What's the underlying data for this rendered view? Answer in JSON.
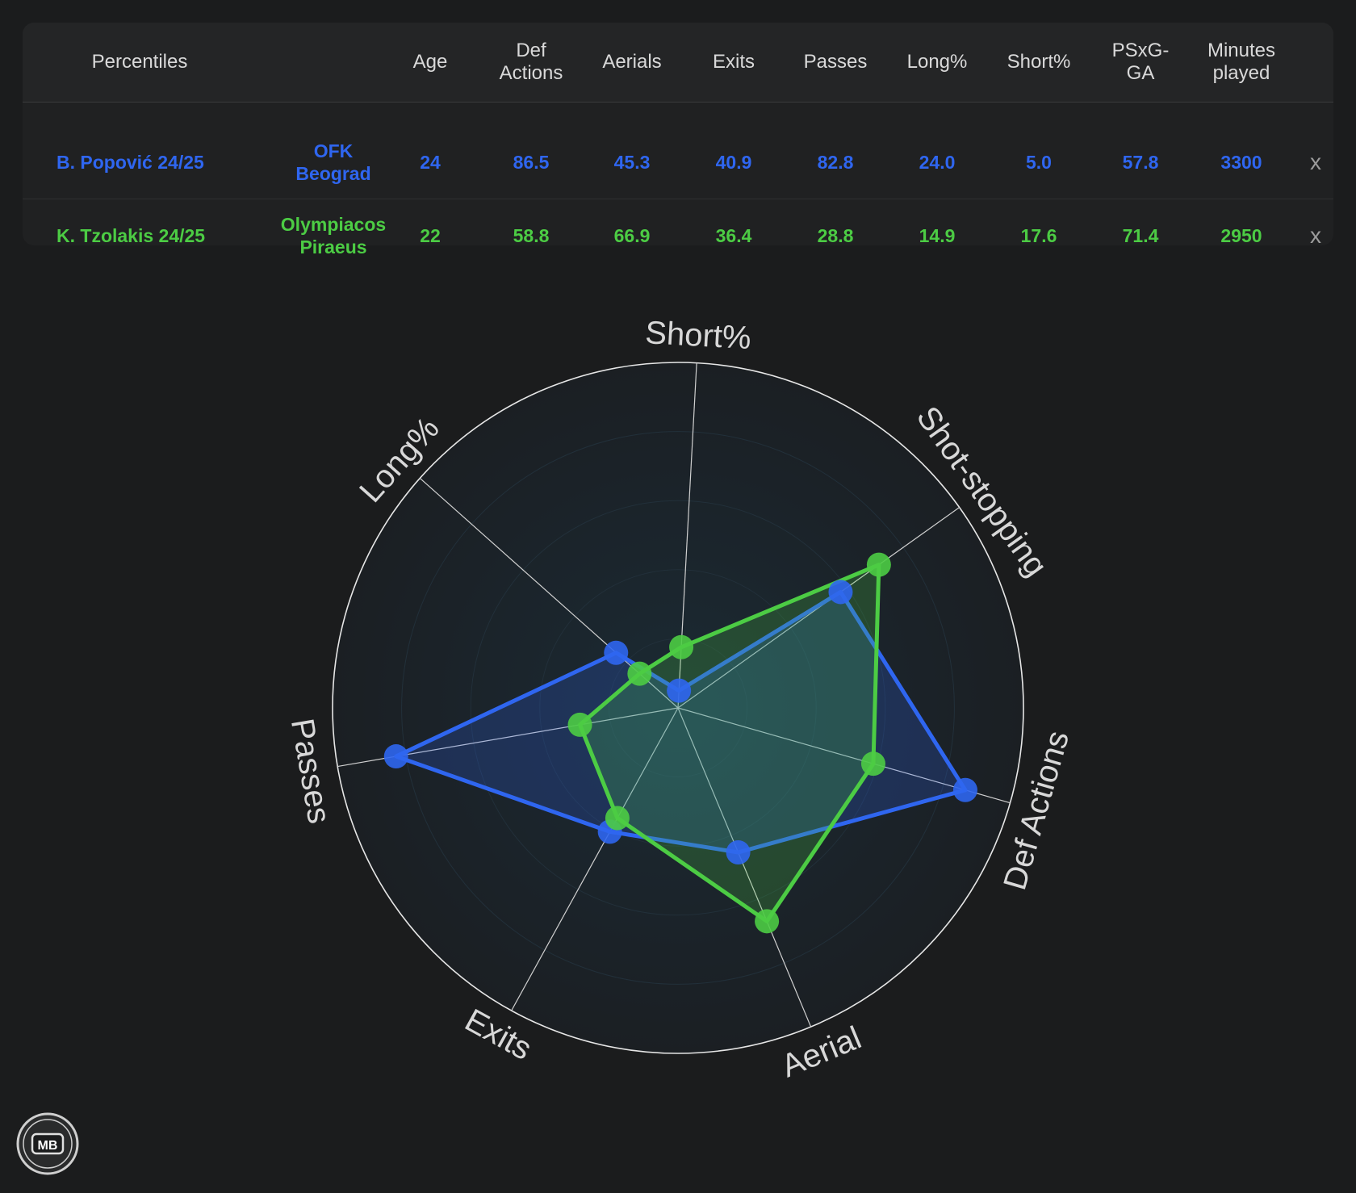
{
  "table": {
    "header_label": "Percentiles",
    "columns": [
      {
        "line1": "Age",
        "line2": ""
      },
      {
        "line1": "Def",
        "line2": "Actions"
      },
      {
        "line1": "Aerials",
        "line2": ""
      },
      {
        "line1": "Exits",
        "line2": ""
      },
      {
        "line1": "Passes",
        "line2": ""
      },
      {
        "line1": "Long%",
        "line2": ""
      },
      {
        "line1": "Short%",
        "line2": ""
      },
      {
        "line1": "PSxG-",
        "line2": "GA"
      },
      {
        "line1": "Minutes",
        "line2": "played"
      }
    ],
    "rows": [
      {
        "player": "B. Popović 24/25",
        "club_line1": "OFK",
        "club_line2": "Beograd",
        "values": [
          "24",
          "86.5",
          "45.3",
          "40.9",
          "82.8",
          "24.0",
          "5.0",
          "57.8",
          "3300"
        ],
        "remove_label": "x",
        "color": "#2f66f0"
      },
      {
        "player": "K. Tzolakis 24/25",
        "club_line1": "Olympiacos",
        "club_line2": "Piraeus",
        "values": [
          "22",
          "58.8",
          "66.9",
          "36.4",
          "28.8",
          "14.9",
          "17.6",
          "71.4",
          "2950"
        ],
        "remove_label": "x",
        "color": "#4ccc44"
      }
    ]
  },
  "chart_data": {
    "type": "radar",
    "axes": [
      "Short%",
      "Shot-stopping",
      "Def Actions",
      "Aerial",
      "Exits",
      "Passes",
      "Long%"
    ],
    "range": [
      0,
      100
    ],
    "series": [
      {
        "values": [
          5.0,
          57.8,
          86.5,
          45.3,
          40.9,
          82.8,
          24.0
        ],
        "color": "#2f66f0"
      },
      {
        "values": [
          17.6,
          71.4,
          58.8,
          66.9,
          36.4,
          28.8,
          14.9
        ],
        "color": "#4ccc44"
      }
    ],
    "grid": "radial bands",
    "legend": "none"
  },
  "logo": {
    "text": "MB"
  }
}
